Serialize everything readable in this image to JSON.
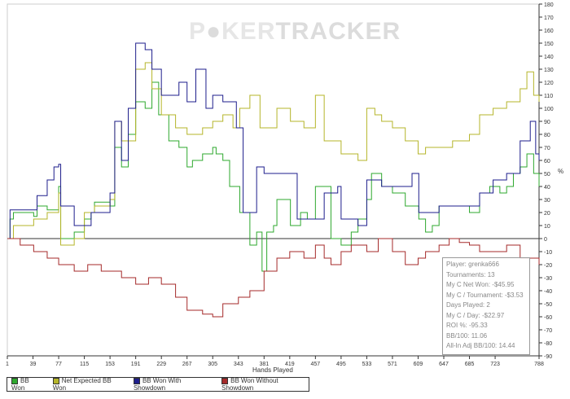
{
  "chart_data": {
    "type": "line",
    "title": "",
    "logo": "POKERTRACKER",
    "xlabel": "Hands Played",
    "ylabel": "%",
    "xlim": [
      1,
      788
    ],
    "ylim": [
      -90,
      180
    ],
    "xticks": [
      1,
      39,
      77,
      115,
      153,
      191,
      229,
      267,
      305,
      343,
      381,
      419,
      457,
      495,
      533,
      571,
      609,
      647,
      685,
      723,
      788
    ],
    "yticks": [
      -90,
      -80,
      -70,
      -60,
      -50,
      -40,
      -30,
      -20,
      -10,
      0,
      10,
      20,
      30,
      40,
      50,
      60,
      70,
      80,
      90,
      100,
      110,
      120,
      130,
      140,
      150,
      160,
      170,
      180
    ],
    "series": [
      {
        "name": "BB Won",
        "color": "#2ea82e",
        "points": [
          [
            1,
            0
          ],
          [
            5,
            15
          ],
          [
            10,
            20
          ],
          [
            40,
            17
          ],
          [
            45,
            25
          ],
          [
            60,
            22
          ],
          [
            77,
            40
          ],
          [
            80,
            0
          ],
          [
            100,
            5
          ],
          [
            115,
            15
          ],
          [
            125,
            20
          ],
          [
            130,
            28
          ],
          [
            153,
            25
          ],
          [
            160,
            70
          ],
          [
            170,
            55
          ],
          [
            180,
            80
          ],
          [
            191,
            105
          ],
          [
            205,
            100
          ],
          [
            215,
            120
          ],
          [
            225,
            95
          ],
          [
            240,
            75
          ],
          [
            255,
            70
          ],
          [
            267,
            55
          ],
          [
            275,
            60
          ],
          [
            290,
            65
          ],
          [
            305,
            70
          ],
          [
            310,
            65
          ],
          [
            320,
            60
          ],
          [
            330,
            40
          ],
          [
            345,
            20
          ],
          [
            360,
            -5
          ],
          [
            370,
            5
          ],
          [
            378,
            -25
          ],
          [
            385,
            5
          ],
          [
            395,
            10
          ],
          [
            400,
            30
          ],
          [
            420,
            10
          ],
          [
            435,
            20
          ],
          [
            445,
            15
          ],
          [
            457,
            40
          ],
          [
            470,
            40
          ],
          [
            480,
            0
          ],
          [
            495,
            -5
          ],
          [
            510,
            5
          ],
          [
            520,
            15
          ],
          [
            533,
            30
          ],
          [
            540,
            50
          ],
          [
            555,
            40
          ],
          [
            571,
            35
          ],
          [
            590,
            25
          ],
          [
            600,
            25
          ],
          [
            610,
            15
          ],
          [
            620,
            5
          ],
          [
            630,
            10
          ],
          [
            640,
            25
          ],
          [
            660,
            25
          ],
          [
            685,
            20
          ],
          [
            700,
            35
          ],
          [
            715,
            40
          ],
          [
            730,
            35
          ],
          [
            740,
            40
          ],
          [
            750,
            50
          ],
          [
            760,
            55
          ],
          [
            770,
            65
          ],
          [
            780,
            50
          ],
          [
            788,
            40
          ]
        ]
      },
      {
        "name": "Net Expected BB Won",
        "color": "#b5b52a",
        "points": [
          [
            1,
            0
          ],
          [
            10,
            10
          ],
          [
            40,
            15
          ],
          [
            60,
            20
          ],
          [
            77,
            35
          ],
          [
            80,
            -5
          ],
          [
            100,
            0
          ],
          [
            115,
            20
          ],
          [
            130,
            25
          ],
          [
            153,
            30
          ],
          [
            160,
            90
          ],
          [
            170,
            75
          ],
          [
            191,
            130
          ],
          [
            205,
            135
          ],
          [
            215,
            115
          ],
          [
            229,
            95
          ],
          [
            250,
            85
          ],
          [
            267,
            80
          ],
          [
            290,
            85
          ],
          [
            305,
            90
          ],
          [
            320,
            95
          ],
          [
            335,
            85
          ],
          [
            345,
            100
          ],
          [
            360,
            110
          ],
          [
            375,
            85
          ],
          [
            390,
            85
          ],
          [
            400,
            100
          ],
          [
            420,
            90
          ],
          [
            440,
            85
          ],
          [
            457,
            110
          ],
          [
            470,
            75
          ],
          [
            495,
            65
          ],
          [
            520,
            60
          ],
          [
            533,
            100
          ],
          [
            545,
            95
          ],
          [
            555,
            90
          ],
          [
            571,
            85
          ],
          [
            590,
            75
          ],
          [
            609,
            65
          ],
          [
            620,
            70
          ],
          [
            640,
            70
          ],
          [
            660,
            75
          ],
          [
            685,
            80
          ],
          [
            700,
            95
          ],
          [
            720,
            100
          ],
          [
            740,
            105
          ],
          [
            760,
            115
          ],
          [
            770,
            128
          ],
          [
            780,
            110
          ],
          [
            788,
            105
          ]
        ]
      },
      {
        "name": "BB Won With Showdown",
        "color": "#1e1e8c",
        "points": [
          [
            1,
            0
          ],
          [
            5,
            22
          ],
          [
            40,
            22
          ],
          [
            45,
            33
          ],
          [
            60,
            45
          ],
          [
            70,
            55
          ],
          [
            77,
            57
          ],
          [
            80,
            25
          ],
          [
            100,
            10
          ],
          [
            115,
            10
          ],
          [
            125,
            20
          ],
          [
            153,
            35
          ],
          [
            160,
            90
          ],
          [
            170,
            60
          ],
          [
            180,
            100
          ],
          [
            191,
            150
          ],
          [
            205,
            145
          ],
          [
            215,
            130
          ],
          [
            229,
            110
          ],
          [
            240,
            110
          ],
          [
            255,
            120
          ],
          [
            267,
            105
          ],
          [
            280,
            130
          ],
          [
            295,
            100
          ],
          [
            305,
            110
          ],
          [
            320,
            105
          ],
          [
            340,
            85
          ],
          [
            350,
            20
          ],
          [
            365,
            20
          ],
          [
            370,
            55
          ],
          [
            381,
            50
          ],
          [
            420,
            50
          ],
          [
            430,
            15
          ],
          [
            457,
            15
          ],
          [
            470,
            35
          ],
          [
            480,
            35
          ],
          [
            490,
            40
          ],
          [
            495,
            15
          ],
          [
            520,
            10
          ],
          [
            533,
            45
          ],
          [
            545,
            45
          ],
          [
            555,
            40
          ],
          [
            590,
            40
          ],
          [
            600,
            50
          ],
          [
            610,
            20
          ],
          [
            640,
            25
          ],
          [
            660,
            25
          ],
          [
            700,
            35
          ],
          [
            720,
            45
          ],
          [
            740,
            50
          ],
          [
            760,
            75
          ],
          [
            775,
            90
          ],
          [
            783,
            65
          ],
          [
            788,
            60
          ]
        ]
      },
      {
        "name": "BB Won Without Showdown",
        "color": "#a52a2a",
        "points": [
          [
            1,
            0
          ],
          [
            20,
            -5
          ],
          [
            40,
            -10
          ],
          [
            60,
            -15
          ],
          [
            77,
            -20
          ],
          [
            100,
            -25
          ],
          [
            120,
            -20
          ],
          [
            140,
            -25
          ],
          [
            153,
            -25
          ],
          [
            170,
            -30
          ],
          [
            191,
            -35
          ],
          [
            210,
            -30
          ],
          [
            229,
            -35
          ],
          [
            250,
            -45
          ],
          [
            267,
            -55
          ],
          [
            290,
            -58
          ],
          [
            305,
            -60
          ],
          [
            320,
            -50
          ],
          [
            343,
            -45
          ],
          [
            360,
            -40
          ],
          [
            381,
            -25
          ],
          [
            400,
            -15
          ],
          [
            419,
            -10
          ],
          [
            440,
            -15
          ],
          [
            457,
            -5
          ],
          [
            470,
            -15
          ],
          [
            480,
            -20
          ],
          [
            495,
            -10
          ],
          [
            510,
            -5
          ],
          [
            533,
            -10
          ],
          [
            550,
            0
          ],
          [
            571,
            -10
          ],
          [
            590,
            -20
          ],
          [
            600,
            -20
          ],
          [
            609,
            -15
          ],
          [
            620,
            -10
          ],
          [
            640,
            -5
          ],
          [
            655,
            0
          ],
          [
            670,
            -3
          ],
          [
            685,
            -5
          ],
          [
            700,
            -10
          ],
          [
            720,
            -10
          ],
          [
            740,
            -5
          ],
          [
            760,
            -15
          ],
          [
            788,
            -20
          ]
        ]
      }
    ],
    "legend_position": "bottom-left",
    "stats": [
      "Player: grenka666",
      "Tournaments: 13",
      "My C Net Won: -$45.95",
      "My C / Tournament: -$3.53",
      "Days Played: 2",
      "My C / Day: -$22.97",
      "ROI %: -95.33",
      "BB/100: 11.06",
      "All-In Adj BB/100: 14.44"
    ]
  }
}
